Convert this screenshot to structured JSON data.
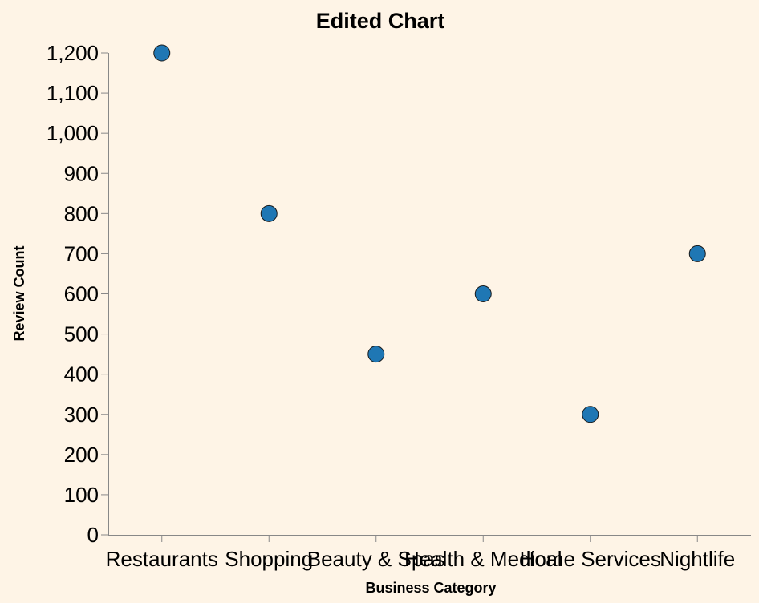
{
  "chart_data": {
    "type": "scatter",
    "title": "Edited Chart",
    "xlabel": "Business Category",
    "ylabel": "Review Count",
    "categories": [
      "Restaurants",
      "Shopping",
      "Beauty & Spas",
      "Health & Medical",
      "Home Services",
      "Nightlife"
    ],
    "values": [
      1200,
      800,
      450,
      600,
      300,
      700
    ],
    "ylim": [
      0,
      1200
    ],
    "yticks": [
      "0",
      "100",
      "200",
      "300",
      "400",
      "500",
      "600",
      "700",
      "800",
      "900",
      "1,000",
      "1,100",
      "1,200"
    ],
    "grid": false,
    "point_color": "#1f77b4",
    "background": "#fef4e6"
  }
}
